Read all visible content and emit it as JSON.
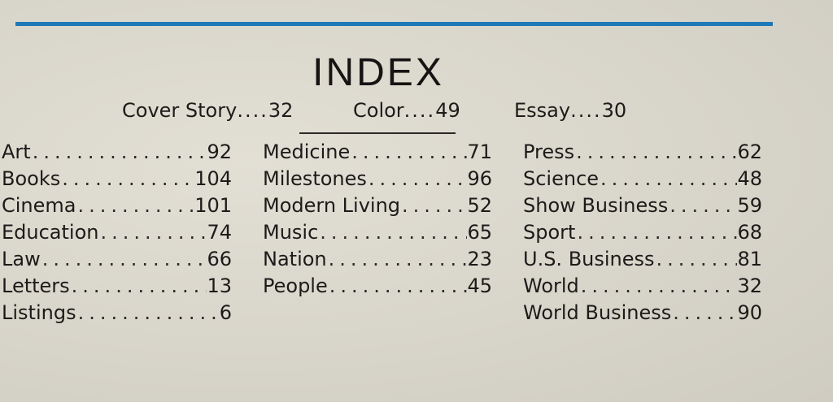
{
  "header": {
    "title": "INDEX",
    "accent_color": "#1e79b8"
  },
  "features": [
    {
      "label": "Cover Story",
      "dots": "....",
      "page": "32"
    },
    {
      "label": "Color",
      "dots": "....",
      "page": "49"
    },
    {
      "label": "Essay",
      "dots": "....",
      "page": "30"
    }
  ],
  "columns": [
    [
      {
        "label": "Art",
        "page": "92"
      },
      {
        "label": "Books",
        "page": "104"
      },
      {
        "label": "Cinema",
        "page": "101"
      },
      {
        "label": "Education",
        "page": "74"
      },
      {
        "label": "Law",
        "page": "66"
      },
      {
        "label": "Letters",
        "page": "13"
      },
      {
        "label": "Listings",
        "page": "6"
      }
    ],
    [
      {
        "label": "Medicine",
        "page": "71"
      },
      {
        "label": "Milestones",
        "page": "96"
      },
      {
        "label": "Modern Living",
        "page": "52"
      },
      {
        "label": "Music",
        "page": "65"
      },
      {
        "label": "Nation",
        "page": "23"
      },
      {
        "label": "People",
        "page": "45"
      }
    ],
    [
      {
        "label": "Press",
        "page": "62"
      },
      {
        "label": "Science",
        "page": "48"
      },
      {
        "label": "Show Business",
        "page": "59"
      },
      {
        "label": "Sport",
        "page": "68"
      },
      {
        "label": "U.S. Business",
        "page": "81"
      },
      {
        "label": "World",
        "page": "32"
      },
      {
        "label": "World Business",
        "page": "90"
      }
    ]
  ]
}
